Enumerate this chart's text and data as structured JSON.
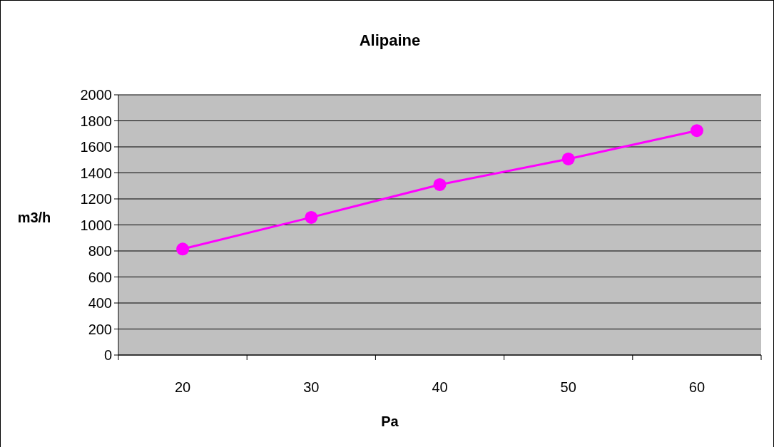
{
  "chart_data": {
    "type": "line",
    "title": "Alipaine",
    "xlabel": "Pa",
    "ylabel": "m3/h",
    "categories": [
      "20",
      "30",
      "40",
      "50",
      "60"
    ],
    "series": [
      {
        "color": "#ff00ff",
        "values": [
          815,
          1058,
          1310,
          1507,
          1725
        ]
      }
    ],
    "ylim": [
      0,
      2000
    ],
    "yticks": [
      0,
      200,
      400,
      600,
      800,
      1000,
      1200,
      1400,
      1600,
      1800,
      2000
    ],
    "grid": "y",
    "marker": "circle",
    "line_style": "solid"
  }
}
